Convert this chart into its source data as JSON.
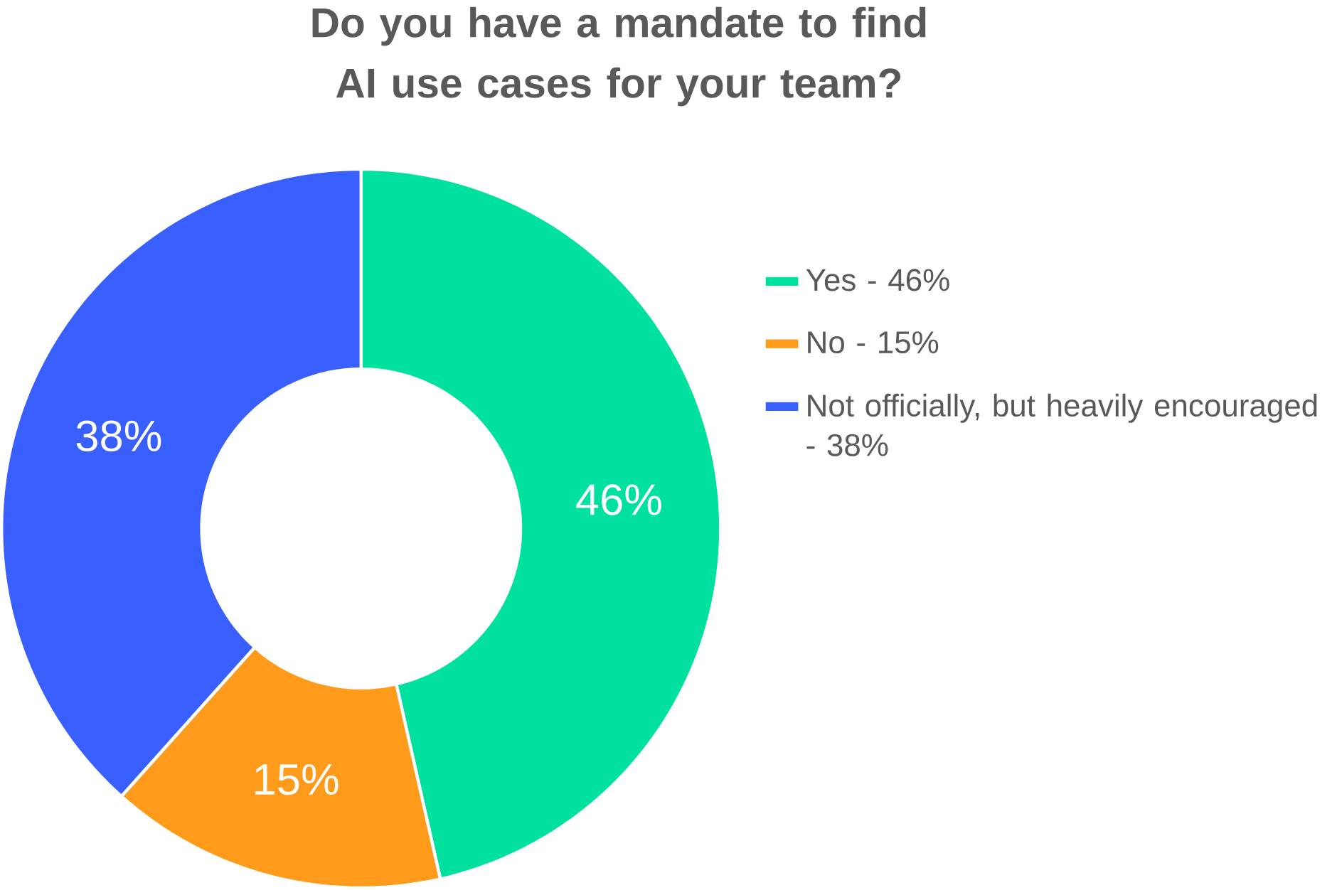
{
  "chart_data": {
    "type": "donut",
    "title": "Do you have a mandate to find AI use cases for your team?",
    "categories": [
      "Yes - 46%",
      "No - 15%",
      "Not officially, but heavily encouraged - 38%"
    ],
    "values": [
      46,
      15,
      38
    ],
    "colors": [
      "#00e09e",
      "#ff9a1a",
      "#3a5fff"
    ],
    "value_labels": [
      "46%",
      "15%",
      "38%"
    ],
    "legend": "right"
  }
}
